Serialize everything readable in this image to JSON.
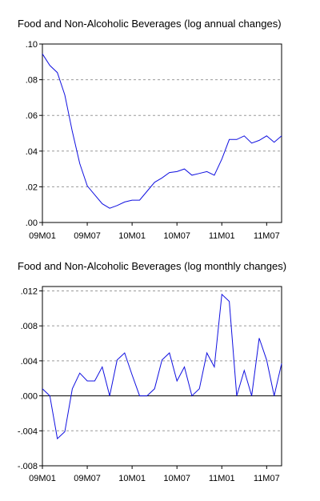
{
  "chart_data": [
    {
      "type": "line",
      "title": "Food and Non-Alcoholic Beverages (log annual changes)",
      "x_labels": [
        "09M01",
        "09M07",
        "10M01",
        "10M07",
        "11M01",
        "11M07"
      ],
      "y_ticks": [
        ".00",
        ".02",
        ".04",
        ".06",
        ".08",
        ".10"
      ],
      "ylim": [
        0,
        0.1
      ],
      "grid": true,
      "series": [
        {
          "color": "#1010e0",
          "x": [
            "2009-01",
            "2009-02",
            "2009-03",
            "2009-04",
            "2009-05",
            "2009-06",
            "2009-07",
            "2009-08",
            "2009-09",
            "2009-10",
            "2009-11",
            "2009-12",
            "2010-01",
            "2010-02",
            "2010-03",
            "2010-04",
            "2010-05",
            "2010-06",
            "2010-07",
            "2010-08",
            "2010-09",
            "2010-10",
            "2010-11",
            "2010-12",
            "2011-01",
            "2011-02",
            "2011-03",
            "2011-04",
            "2011-05",
            "2011-06",
            "2011-07",
            "2011-08",
            "2011-09"
          ],
          "values": [
            0.0945,
            0.088,
            0.084,
            0.0715,
            0.051,
            0.033,
            0.0205,
            0.0155,
            0.0105,
            0.008,
            0.0095,
            0.0115,
            0.0125,
            0.0125,
            0.0175,
            0.0225,
            0.025,
            0.028,
            0.0285,
            0.03,
            0.0265,
            0.0275,
            0.0285,
            0.0265,
            0.0355,
            0.0465,
            0.0465,
            0.0485,
            0.0445,
            0.046,
            0.0485,
            0.045,
            0.0485
          ]
        }
      ]
    },
    {
      "type": "line",
      "title": "Food and Non-Alcoholic Beverages (log monthly changes)",
      "x_labels": [
        "09M01",
        "09M07",
        "10M01",
        "10M07",
        "11M01",
        "11M07"
      ],
      "y_ticks": [
        "-.008",
        "-.004",
        ".000",
        ".004",
        ".008",
        ".012"
      ],
      "ylim": [
        -0.008,
        0.0125
      ],
      "grid": true,
      "series": [
        {
          "color": "#1010e0",
          "x": [
            "2009-01",
            "2009-02",
            "2009-03",
            "2009-04",
            "2009-05",
            "2009-06",
            "2009-07",
            "2009-08",
            "2009-09",
            "2009-10",
            "2009-11",
            "2009-12",
            "2010-01",
            "2010-02",
            "2010-03",
            "2010-04",
            "2010-05",
            "2010-06",
            "2010-07",
            "2010-08",
            "2010-09",
            "2010-10",
            "2010-11",
            "2010-12",
            "2011-01",
            "2011-02",
            "2011-03",
            "2011-04",
            "2011-05",
            "2011-06",
            "2011-07",
            "2011-08",
            "2011-09"
          ],
          "values": [
            0.0008,
            0.0,
            -0.0049,
            -0.0041,
            0.0008,
            0.0026,
            0.0017,
            0.0017,
            0.0033,
            0.0,
            0.0041,
            0.0049,
            0.0024,
            0.0,
            0.0,
            0.0008,
            0.0041,
            0.0049,
            0.0017,
            0.0033,
            0.0,
            0.0008,
            0.0049,
            0.0033,
            0.0116,
            0.0108,
            0.0,
            0.0029,
            0.0,
            0.0066,
            0.0041,
            0.0,
            0.0037
          ]
        }
      ]
    }
  ]
}
